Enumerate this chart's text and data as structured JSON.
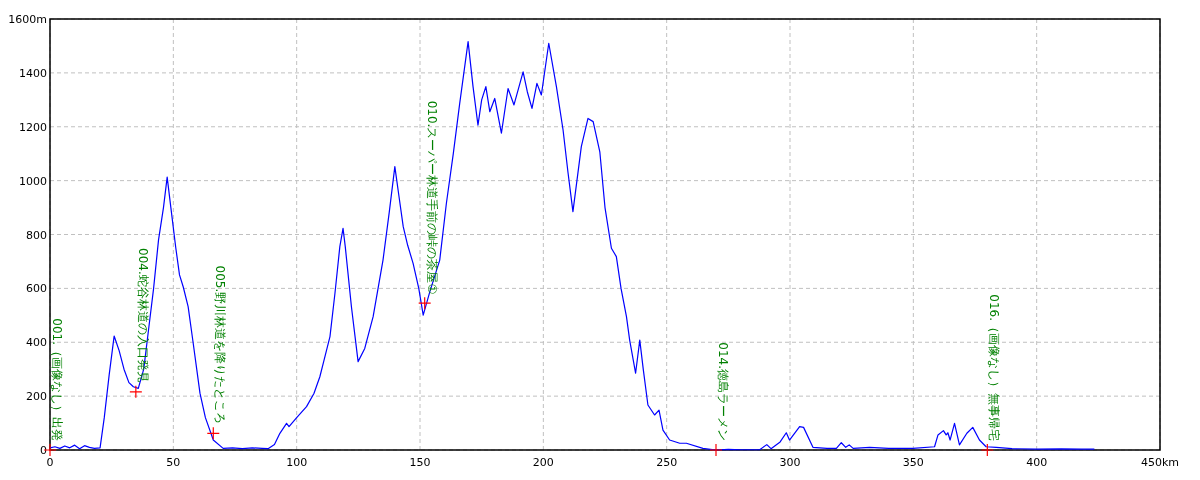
{
  "chart_data": {
    "type": "line",
    "xlim": [
      0,
      450
    ],
    "ylim": [
      0,
      1600
    ],
    "xticks": [
      0,
      50,
      100,
      150,
      200,
      250,
      300,
      350,
      400,
      {
        "value": 450,
        "label": "450km"
      }
    ],
    "yticks": [
      0,
      200,
      400,
      600,
      800,
      1000,
      1200,
      1400,
      {
        "value": 1600,
        "label": "1600m"
      }
    ],
    "grid": true,
    "line_style": "solid",
    "series": [
      {
        "color": "#0000ff",
        "x": [
          0,
          2,
          4,
          6,
          8,
          10,
          12,
          14,
          16,
          18,
          20.3,
          22,
          24,
          26,
          28,
          30,
          32,
          33.8,
          35.8,
          38,
          40,
          42,
          44,
          46,
          47.5,
          49,
          51,
          52.5,
          54,
          56,
          58,
          60.8,
          63,
          66.2,
          70.2,
          74,
          78,
          82,
          86,
          88.4,
          91,
          93.2,
          95.9,
          96.9,
          100,
          104,
          107,
          109.4,
          111,
          113.5,
          115.5,
          117.5,
          118.8,
          119.7,
          122.2,
          124.9,
          127.6,
          131,
          135,
          137.5,
          139.8,
          141.5,
          143.2,
          145,
          147.2,
          149.5,
          151.3,
          154,
          158,
          160.7,
          163.5,
          166.1,
          169.5,
          171.5,
          173.5,
          175,
          176.7,
          178.3,
          180.3,
          183,
          185.7,
          188.1,
          191.8,
          193.5,
          195.4,
          197.4,
          199.2,
          202.2,
          205.3,
          208,
          210,
          212,
          215.4,
          218.1,
          220.2,
          222.9,
          225,
          227.6,
          229.6,
          231.5,
          233.7,
          235,
          237.4,
          239.1,
          240.5,
          242.4,
          245.1,
          246.9,
          248.5,
          251.2,
          255.3,
          258,
          264.7,
          270,
          275,
          280,
          287.7,
          290.6,
          292.3,
          296,
          298.5,
          299.8,
          303.9,
          305.5,
          309.3,
          315,
          318.8,
          320.8,
          322.6,
          324,
          325.6,
          332.3,
          340,
          349.8,
          358.6,
          360,
          362.2,
          363.3,
          364,
          364.9,
          366.7,
          368.7,
          371.7,
          374.1,
          376.8,
          379.5,
          383.6,
          390,
          400,
          410,
          418,
          423.4
        ],
        "values": [
          8,
          12,
          6,
          15,
          8,
          18,
          5,
          16,
          10,
          6,
          8,
          120,
          280,
          423,
          370,
          300,
          250,
          235,
          229,
          300,
          450,
          600,
          780,
          900,
          1013,
          900,
          750,
          650,
          606,
          532,
          400,
          211,
          120,
          37,
          6,
          8,
          5,
          8,
          6,
          5,
          20,
          62,
          99,
          87,
          120,
          161,
          210,
          272,
          330,
          421,
          580,
          755,
          823,
          755,
          532,
          328,
          377,
          495,
          705,
          880,
          1052,
          940,
          829,
          760,
          693,
          600,
          501,
          588,
          705,
          916,
          1100,
          1287,
          1516,
          1349,
          1206,
          1300,
          1349,
          1256,
          1305,
          1176,
          1342,
          1281,
          1404,
          1330,
          1268,
          1361,
          1318,
          1510,
          1349,
          1188,
          1030,
          885,
          1126,
          1231,
          1219,
          1107,
          900,
          749,
          718,
          600,
          495,
          408,
          285,
          408,
          300,
          167,
          130,
          148,
          74,
          37,
          25,
          25,
          6,
          0,
          2,
          1,
          1,
          20,
          5,
          30,
          64,
          37,
          87,
          84,
          10,
          6,
          6,
          27,
          10,
          19,
          6,
          10,
          6,
          6,
          12,
          56,
          72,
          56,
          64,
          37,
          99,
          19,
          62,
          84,
          37,
          12,
          10,
          5,
          3,
          4,
          3,
          3
        ]
      }
    ],
    "annotations": [
      {
        "text": "001.（画像なし）出発",
        "x": 0,
        "y": 0
      },
      {
        "text": "004.蛇谷林道の入口発見",
        "x": 34.8,
        "y": 216
      },
      {
        "text": "005.野川林道を降りたところ",
        "x": 66.2,
        "y": 62
      },
      {
        "text": "010.スーパー林道手前の峠の茶屋①",
        "x": 151.9,
        "y": 545
      },
      {
        "text": "014.徳島ラーメン",
        "x": 270,
        "y": 0
      },
      {
        "text": "016.（画像なし）無事帰宅",
        "x": 380,
        "y": 0
      }
    ]
  }
}
